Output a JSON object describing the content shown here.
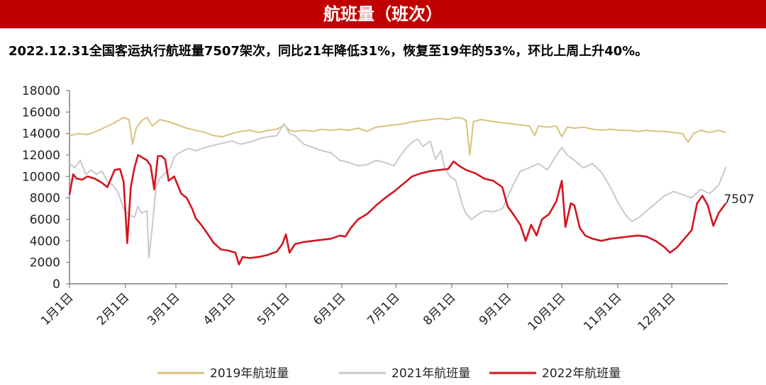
{
  "header": {
    "title": "航班量（班次）",
    "subtitle": "2022.12.31全国客运执行航班量7507架次，同比21年降低31%，恢复至19年的53%，环比上周上升40%。"
  },
  "chart_data": {
    "type": "line",
    "title": "航班量（班次）",
    "xlabel": "",
    "ylabel": "",
    "ylim": [
      0,
      18000
    ],
    "yticks": [
      0,
      2000,
      4000,
      6000,
      8000,
      10000,
      12000,
      14000,
      16000,
      18000
    ],
    "xlim": [
      0,
      365
    ],
    "xticks": [
      {
        "label": "1月1日",
        "day": 0
      },
      {
        "label": "2月1日",
        "day": 31
      },
      {
        "label": "3月1日",
        "day": 59
      },
      {
        "label": "4月1日",
        "day": 90
      },
      {
        "label": "5月1日",
        "day": 120
      },
      {
        "label": "6月1日",
        "day": 151
      },
      {
        "label": "7月1日",
        "day": 181
      },
      {
        "label": "8月1日",
        "day": 212
      },
      {
        "label": "9月1日",
        "day": 243
      },
      {
        "label": "10月1日",
        "day": 273
      },
      {
        "label": "11月1日",
        "day": 304
      },
      {
        "label": "12月1日",
        "day": 334
      }
    ],
    "grid": false,
    "legend_position": "bottom",
    "annotation": {
      "text": "7507",
      "day": 364,
      "value": 7507
    },
    "series": [
      {
        "name": "2019年航班量",
        "color": "#d9c27c",
        "points": [
          [
            0,
            13800
          ],
          [
            5,
            14000
          ],
          [
            10,
            13900
          ],
          [
            15,
            14200
          ],
          [
            20,
            14600
          ],
          [
            25,
            15000
          ],
          [
            30,
            15500
          ],
          [
            33,
            15300
          ],
          [
            35,
            13000
          ],
          [
            37,
            14500
          ],
          [
            40,
            15200
          ],
          [
            43,
            15500
          ],
          [
            46,
            14700
          ],
          [
            50,
            15300
          ],
          [
            55,
            15100
          ],
          [
            60,
            14800
          ],
          [
            65,
            14500
          ],
          [
            70,
            14300
          ],
          [
            75,
            14100
          ],
          [
            80,
            13800
          ],
          [
            85,
            13700
          ],
          [
            90,
            14000
          ],
          [
            95,
            14200
          ],
          [
            100,
            14300
          ],
          [
            105,
            14100
          ],
          [
            110,
            14300
          ],
          [
            115,
            14400
          ],
          [
            119,
            14800
          ],
          [
            122,
            14300
          ],
          [
            125,
            14200
          ],
          [
            130,
            14300
          ],
          [
            135,
            14200
          ],
          [
            140,
            14400
          ],
          [
            145,
            14300
          ],
          [
            150,
            14400
          ],
          [
            155,
            14300
          ],
          [
            160,
            14500
          ],
          [
            165,
            14200
          ],
          [
            170,
            14600
          ],
          [
            175,
            14700
          ],
          [
            180,
            14800
          ],
          [
            185,
            14900
          ],
          [
            190,
            15100
          ],
          [
            195,
            15200
          ],
          [
            200,
            15300
          ],
          [
            205,
            15400
          ],
          [
            210,
            15300
          ],
          [
            214,
            15500
          ],
          [
            218,
            15400
          ],
          [
            220,
            15200
          ],
          [
            222,
            12000
          ],
          [
            224,
            15100
          ],
          [
            228,
            15300
          ],
          [
            232,
            15200
          ],
          [
            236,
            15100
          ],
          [
            240,
            15000
          ],
          [
            245,
            14900
          ],
          [
            250,
            14800
          ],
          [
            255,
            14700
          ],
          [
            258,
            13800
          ],
          [
            260,
            14700
          ],
          [
            265,
            14600
          ],
          [
            270,
            14700
          ],
          [
            273,
            13700
          ],
          [
            276,
            14600
          ],
          [
            280,
            14500
          ],
          [
            285,
            14600
          ],
          [
            290,
            14400
          ],
          [
            295,
            14300
          ],
          [
            300,
            14400
          ],
          [
            305,
            14300
          ],
          [
            310,
            14300
          ],
          [
            315,
            14200
          ],
          [
            320,
            14300
          ],
          [
            325,
            14200
          ],
          [
            330,
            14200
          ],
          [
            335,
            14100
          ],
          [
            340,
            14000
          ],
          [
            343,
            13200
          ],
          [
            346,
            14000
          ],
          [
            350,
            14300
          ],
          [
            355,
            14100
          ],
          [
            360,
            14300
          ],
          [
            364,
            14100
          ]
        ]
      },
      {
        "name": "2021年航班量",
        "color": "#c9c9c9",
        "points": [
          [
            0,
            11200
          ],
          [
            3,
            10800
          ],
          [
            6,
            11500
          ],
          [
            9,
            10200
          ],
          [
            12,
            10600
          ],
          [
            15,
            10200
          ],
          [
            18,
            10500
          ],
          [
            21,
            9500
          ],
          [
            24,
            9200
          ],
          [
            27,
            8500
          ],
          [
            30,
            7000
          ],
          [
            33,
            6400
          ],
          [
            36,
            6200
          ],
          [
            38,
            7200
          ],
          [
            40,
            6600
          ],
          [
            43,
            6800
          ],
          [
            44,
            2400
          ],
          [
            46,
            5500
          ],
          [
            48,
            9000
          ],
          [
            50,
            9800
          ],
          [
            53,
            10300
          ],
          [
            56,
            10800
          ],
          [
            58,
            11800
          ],
          [
            60,
            12100
          ],
          [
            63,
            12400
          ],
          [
            66,
            12600
          ],
          [
            70,
            12400
          ],
          [
            75,
            12700
          ],
          [
            80,
            12900
          ],
          [
            85,
            13100
          ],
          [
            90,
            13300
          ],
          [
            95,
            13000
          ],
          [
            100,
            13200
          ],
          [
            105,
            13500
          ],
          [
            110,
            13700
          ],
          [
            115,
            13800
          ],
          [
            119,
            14900
          ],
          [
            122,
            14000
          ],
          [
            125,
            13800
          ],
          [
            130,
            13000
          ],
          [
            135,
            12700
          ],
          [
            140,
            12400
          ],
          [
            145,
            12200
          ],
          [
            150,
            11500
          ],
          [
            155,
            11300
          ],
          [
            160,
            11000
          ],
          [
            165,
            11100
          ],
          [
            170,
            11500
          ],
          [
            175,
            11300
          ],
          [
            180,
            11000
          ],
          [
            183,
            11800
          ],
          [
            186,
            12500
          ],
          [
            190,
            13200
          ],
          [
            193,
            13500
          ],
          [
            196,
            12800
          ],
          [
            200,
            13300
          ],
          [
            203,
            11600
          ],
          [
            206,
            12400
          ],
          [
            208,
            10800
          ],
          [
            211,
            10000
          ],
          [
            214,
            9700
          ],
          [
            216,
            8500
          ],
          [
            218,
            7300
          ],
          [
            220,
            6500
          ],
          [
            223,
            6000
          ],
          [
            226,
            6400
          ],
          [
            230,
            6800
          ],
          [
            235,
            6700
          ],
          [
            240,
            7000
          ],
          [
            243,
            8100
          ],
          [
            246,
            9200
          ],
          [
            250,
            10500
          ],
          [
            255,
            10800
          ],
          [
            260,
            11200
          ],
          [
            265,
            10600
          ],
          [
            270,
            12000
          ],
          [
            273,
            12700
          ],
          [
            276,
            12000
          ],
          [
            280,
            11500
          ],
          [
            285,
            10800
          ],
          [
            290,
            11200
          ],
          [
            295,
            10400
          ],
          [
            300,
            9000
          ],
          [
            304,
            7600
          ],
          [
            308,
            6500
          ],
          [
            312,
            5800
          ],
          [
            316,
            6200
          ],
          [
            320,
            6800
          ],
          [
            325,
            7500
          ],
          [
            330,
            8200
          ],
          [
            335,
            8600
          ],
          [
            340,
            8300
          ],
          [
            345,
            8000
          ],
          [
            350,
            8800
          ],
          [
            355,
            8400
          ],
          [
            360,
            9200
          ],
          [
            364,
            10900
          ]
        ]
      },
      {
        "name": "2022年航班量",
        "color": "#d0161e",
        "points": [
          [
            0,
            8300
          ],
          [
            2,
            10200
          ],
          [
            4,
            9800
          ],
          [
            7,
            9700
          ],
          [
            10,
            10000
          ],
          [
            14,
            9800
          ],
          [
            18,
            9400
          ],
          [
            21,
            9000
          ],
          [
            25,
            10600
          ],
          [
            28,
            10700
          ],
          [
            30,
            9500
          ],
          [
            32,
            3800
          ],
          [
            34,
            9000
          ],
          [
            36,
            10800
          ],
          [
            38,
            12000
          ],
          [
            40,
            11800
          ],
          [
            43,
            11500
          ],
          [
            45,
            11000
          ],
          [
            47,
            8800
          ],
          [
            49,
            11900
          ],
          [
            51,
            11900
          ],
          [
            53,
            11600
          ],
          [
            55,
            9600
          ],
          [
            58,
            10000
          ],
          [
            60,
            9200
          ],
          [
            62,
            8400
          ],
          [
            65,
            8000
          ],
          [
            68,
            7000
          ],
          [
            70,
            6100
          ],
          [
            73,
            5500
          ],
          [
            76,
            4800
          ],
          [
            80,
            3800
          ],
          [
            84,
            3200
          ],
          [
            88,
            3100
          ],
          [
            92,
            2900
          ],
          [
            94,
            1800
          ],
          [
            96,
            2500
          ],
          [
            100,
            2400
          ],
          [
            105,
            2500
          ],
          [
            110,
            2700
          ],
          [
            115,
            3000
          ],
          [
            118,
            3700
          ],
          [
            120,
            4600
          ],
          [
            122,
            2900
          ],
          [
            125,
            3700
          ],
          [
            130,
            3900
          ],
          [
            135,
            4000
          ],
          [
            140,
            4100
          ],
          [
            145,
            4200
          ],
          [
            150,
            4500
          ],
          [
            153,
            4400
          ],
          [
            156,
            5200
          ],
          [
            160,
            6000
          ],
          [
            165,
            6500
          ],
          [
            170,
            7300
          ],
          [
            175,
            8000
          ],
          [
            180,
            8600
          ],
          [
            185,
            9300
          ],
          [
            190,
            10000
          ],
          [
            195,
            10300
          ],
          [
            200,
            10500
          ],
          [
            205,
            10600
          ],
          [
            210,
            10700
          ],
          [
            213,
            11400
          ],
          [
            216,
            11000
          ],
          [
            220,
            10600
          ],
          [
            225,
            10300
          ],
          [
            230,
            9800
          ],
          [
            235,
            9600
          ],
          [
            240,
            9000
          ],
          [
            243,
            7200
          ],
          [
            246,
            6500
          ],
          [
            250,
            5500
          ],
          [
            253,
            4000
          ],
          [
            256,
            5500
          ],
          [
            259,
            4500
          ],
          [
            262,
            6000
          ],
          [
            266,
            6500
          ],
          [
            270,
            7700
          ],
          [
            273,
            9600
          ],
          [
            275,
            5300
          ],
          [
            278,
            7500
          ],
          [
            280,
            7300
          ],
          [
            283,
            5200
          ],
          [
            286,
            4500
          ],
          [
            290,
            4200
          ],
          [
            295,
            4000
          ],
          [
            300,
            4200
          ],
          [
            305,
            4300
          ],
          [
            310,
            4400
          ],
          [
            315,
            4500
          ],
          [
            320,
            4400
          ],
          [
            325,
            4000
          ],
          [
            330,
            3400
          ],
          [
            333,
            2900
          ],
          [
            337,
            3400
          ],
          [
            341,
            4200
          ],
          [
            345,
            5000
          ],
          [
            348,
            7500
          ],
          [
            351,
            8200
          ],
          [
            354,
            7300
          ],
          [
            357,
            5400
          ],
          [
            360,
            6600
          ],
          [
            364,
            7507
          ]
        ]
      }
    ]
  }
}
